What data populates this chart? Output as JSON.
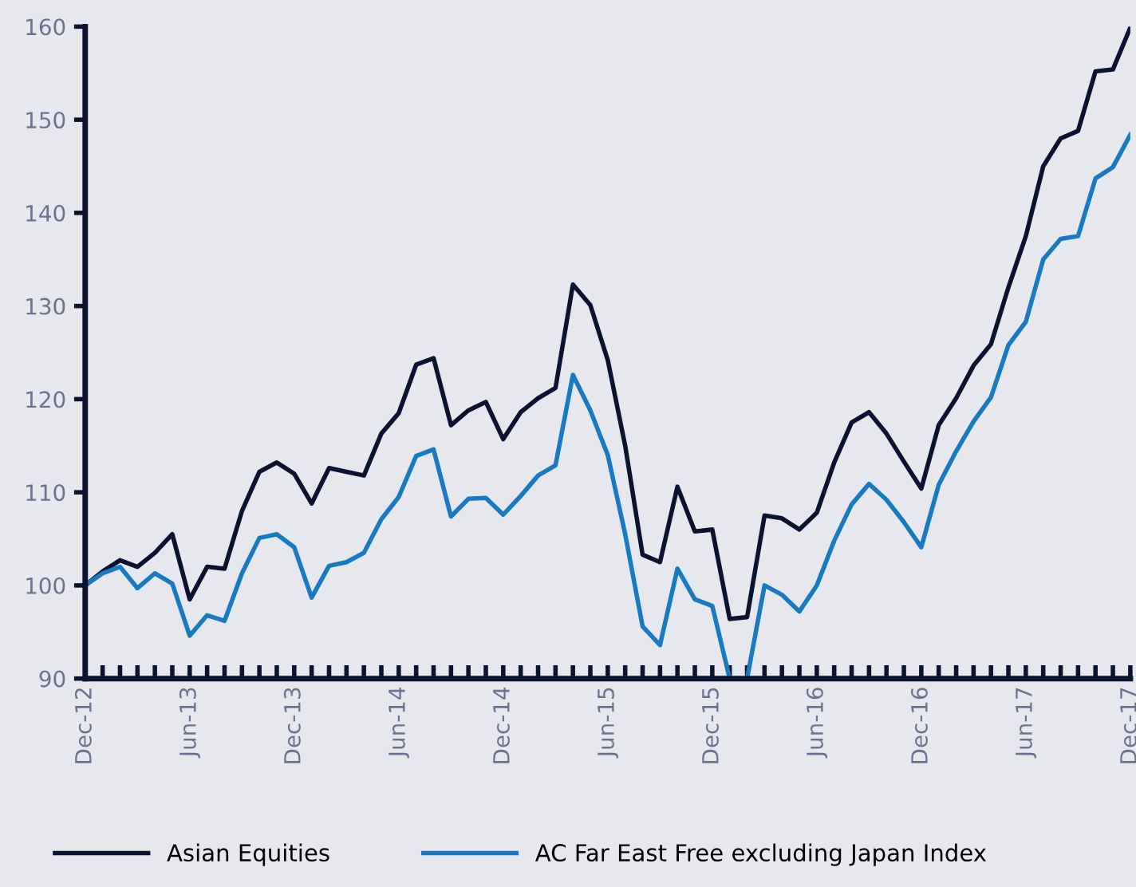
{
  "chart_data": {
    "type": "line",
    "x": [
      "2012-12",
      "2013-01",
      "2013-02",
      "2013-03",
      "2013-04",
      "2013-05",
      "2013-06",
      "2013-07",
      "2013-08",
      "2013-09",
      "2013-10",
      "2013-11",
      "2013-12",
      "2014-01",
      "2014-02",
      "2014-03",
      "2014-04",
      "2014-05",
      "2014-06",
      "2014-07",
      "2014-08",
      "2014-09",
      "2014-10",
      "2014-11",
      "2014-12",
      "2015-01",
      "2015-02",
      "2015-03",
      "2015-04",
      "2015-05",
      "2015-06",
      "2015-07",
      "2015-08",
      "2015-09",
      "2015-10",
      "2015-11",
      "2015-12",
      "2016-01",
      "2016-02",
      "2016-03",
      "2016-04",
      "2016-05",
      "2016-06",
      "2016-07",
      "2016-08",
      "2016-09",
      "2016-10",
      "2016-11",
      "2016-12",
      "2017-01",
      "2017-02",
      "2017-03",
      "2017-04",
      "2017-05",
      "2017-06",
      "2017-07",
      "2017-08",
      "2017-09",
      "2017-10",
      "2017-11",
      "2017-12"
    ],
    "series": [
      {
        "name": "Asian Equities",
        "color": "#0b1330",
        "values": [
          100,
          101.5,
          102.7,
          102,
          103.5,
          105.5,
          98.5,
          102,
          101.8,
          108,
          112.2,
          113.2,
          112,
          108.8,
          112.6,
          112.2,
          111.8,
          116.3,
          118.5,
          123.7,
          124.4,
          117.2,
          118.8,
          119.7,
          115.7,
          118.6,
          120.1,
          121.2,
          132.3,
          130.1,
          124.2,
          115,
          103.3,
          102.5,
          110.6,
          105.8,
          106,
          96.4,
          96.6,
          107.5,
          107.2,
          106,
          107.8,
          113.2,
          117.5,
          118.6,
          116.3,
          113.3,
          110.4,
          117.2,
          120.1,
          123.6,
          125.9,
          132,
          137.5,
          145,
          148,
          148.8,
          155.2,
          155.4,
          159.9
        ]
      },
      {
        "name": "AC Far East Free excluding Japan Index",
        "color": "#1a7abf",
        "values": [
          100,
          101.3,
          102,
          99.7,
          101.3,
          100.2,
          94.6,
          96.8,
          96.2,
          101.3,
          105.1,
          105.5,
          104.1,
          98.7,
          102.1,
          102.5,
          103.5,
          107.1,
          109.5,
          113.9,
          114.6,
          107.4,
          109.3,
          109.4,
          107.6,
          109.6,
          111.8,
          112.9,
          122.6,
          118.8,
          114,
          105.5,
          95.6,
          93.6,
          101.8,
          98.5,
          97.8,
          90,
          90,
          100,
          99,
          97.2,
          100,
          104.8,
          108.7,
          110.9,
          109.2,
          106.8,
          104.1,
          110.8,
          114.4,
          117.6,
          120.2,
          125.8,
          128.3,
          135,
          137.2,
          137.5,
          143.7,
          144.9,
          148.4
        ]
      }
    ],
    "xlim": [
      "2012-12",
      "2017-12"
    ],
    "xticks": [
      {
        "value": "2012-12",
        "label": "Dec-12"
      },
      {
        "value": "2013-06",
        "label": "Jun-13"
      },
      {
        "value": "2013-12",
        "label": "Dec-13"
      },
      {
        "value": "2014-06",
        "label": "Jun-14"
      },
      {
        "value": "2014-12",
        "label": "Dec-14"
      },
      {
        "value": "2015-06",
        "label": "Jun-15"
      },
      {
        "value": "2015-12",
        "label": "Dec-15"
      },
      {
        "value": "2016-06",
        "label": "Jun-16"
      },
      {
        "value": "2016-12",
        "label": "Dec-16"
      },
      {
        "value": "2017-06",
        "label": "Jun-17"
      },
      {
        "value": "2017-12",
        "label": "Dec-17"
      }
    ],
    "ylim": [
      90,
      160
    ],
    "yticks": [
      90,
      100,
      110,
      120,
      130,
      140,
      150,
      160
    ],
    "grid": false,
    "legend": "bottom",
    "line_style": "solid",
    "marker": "none"
  }
}
